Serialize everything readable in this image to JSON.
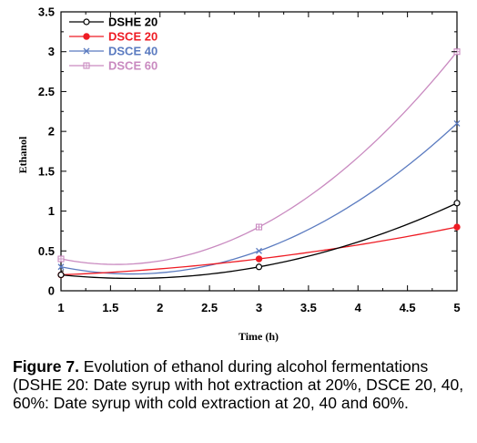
{
  "chart_data": {
    "type": "line",
    "title": "",
    "xlabel": "Time (h)",
    "ylabel": "Ethanol",
    "xlim": [
      1,
      5
    ],
    "ylim": [
      0,
      3.5
    ],
    "xticks": [
      "1",
      "1.5",
      "2",
      "2.5",
      "3",
      "3.5",
      "4",
      "4.5",
      "5"
    ],
    "yticks": [
      "0",
      "0.5",
      "1",
      "1.5",
      "2",
      "2.5",
      "3",
      "3.5"
    ],
    "grid": false,
    "legend_position": "top-left",
    "series": [
      {
        "name": "DSHE 20",
        "color": "#000000",
        "marker": "open-circle",
        "x": [
          1,
          3,
          5
        ],
        "y": [
          0.2,
          0.3,
          1.1
        ]
      },
      {
        "name": "DSCE 20",
        "color": "#ee1c24",
        "marker": "filled-circle",
        "x": [
          1,
          3,
          5
        ],
        "y": [
          0.2,
          0.4,
          0.8
        ]
      },
      {
        "name": "DSCE 40",
        "color": "#5b7bc0",
        "marker": "x",
        "x": [
          1,
          3,
          5
        ],
        "y": [
          0.3,
          0.5,
          2.1
        ]
      },
      {
        "name": "DSCE 60",
        "color": "#c98ac0",
        "marker": "boxed-plus",
        "x": [
          1,
          3,
          5
        ],
        "y": [
          0.4,
          0.8,
          3.0
        ]
      }
    ]
  },
  "caption": {
    "label": "Figure 7.",
    "text": " Evolution of ethanol during alcohol fermentations (DSHE 20: Date syrup with hot extraction at 20%, DSCE 20, 40, 60%: Date syrup with cold extraction at 20, 40 and 60%."
  }
}
